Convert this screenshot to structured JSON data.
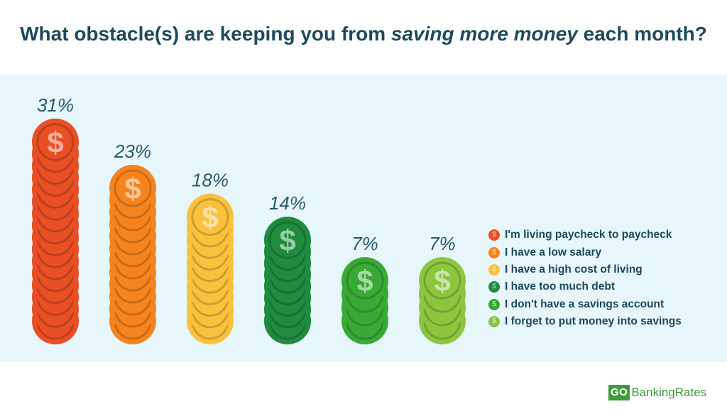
{
  "title": {
    "prefix": "What obstacle(s) are keeping you from ",
    "emphasis": "saving more money",
    "suffix": " each month?"
  },
  "chart_data": {
    "type": "bar",
    "title": "What obstacle(s) are keeping you from saving more money each month?",
    "categories": [
      "I'm living paycheck to paycheck",
      "I have a low salary",
      "I have a high cost of living",
      "I have too much debt",
      "I don't have a savings account",
      "I forget to put money into savings"
    ],
    "values": [
      31,
      23,
      18,
      14,
      7,
      7
    ],
    "value_labels": [
      "31%",
      "23%",
      "18%",
      "14%",
      "7%",
      "7%"
    ],
    "unit": "%",
    "colors": [
      "#e94e24",
      "#f5841f",
      "#fbc13d",
      "#1f8b3e",
      "#39a935",
      "#8cc63f"
    ],
    "coin_symbol": "$",
    "legend_position": "right"
  },
  "brand": {
    "go": "GO",
    "name": "BankingRates"
  }
}
